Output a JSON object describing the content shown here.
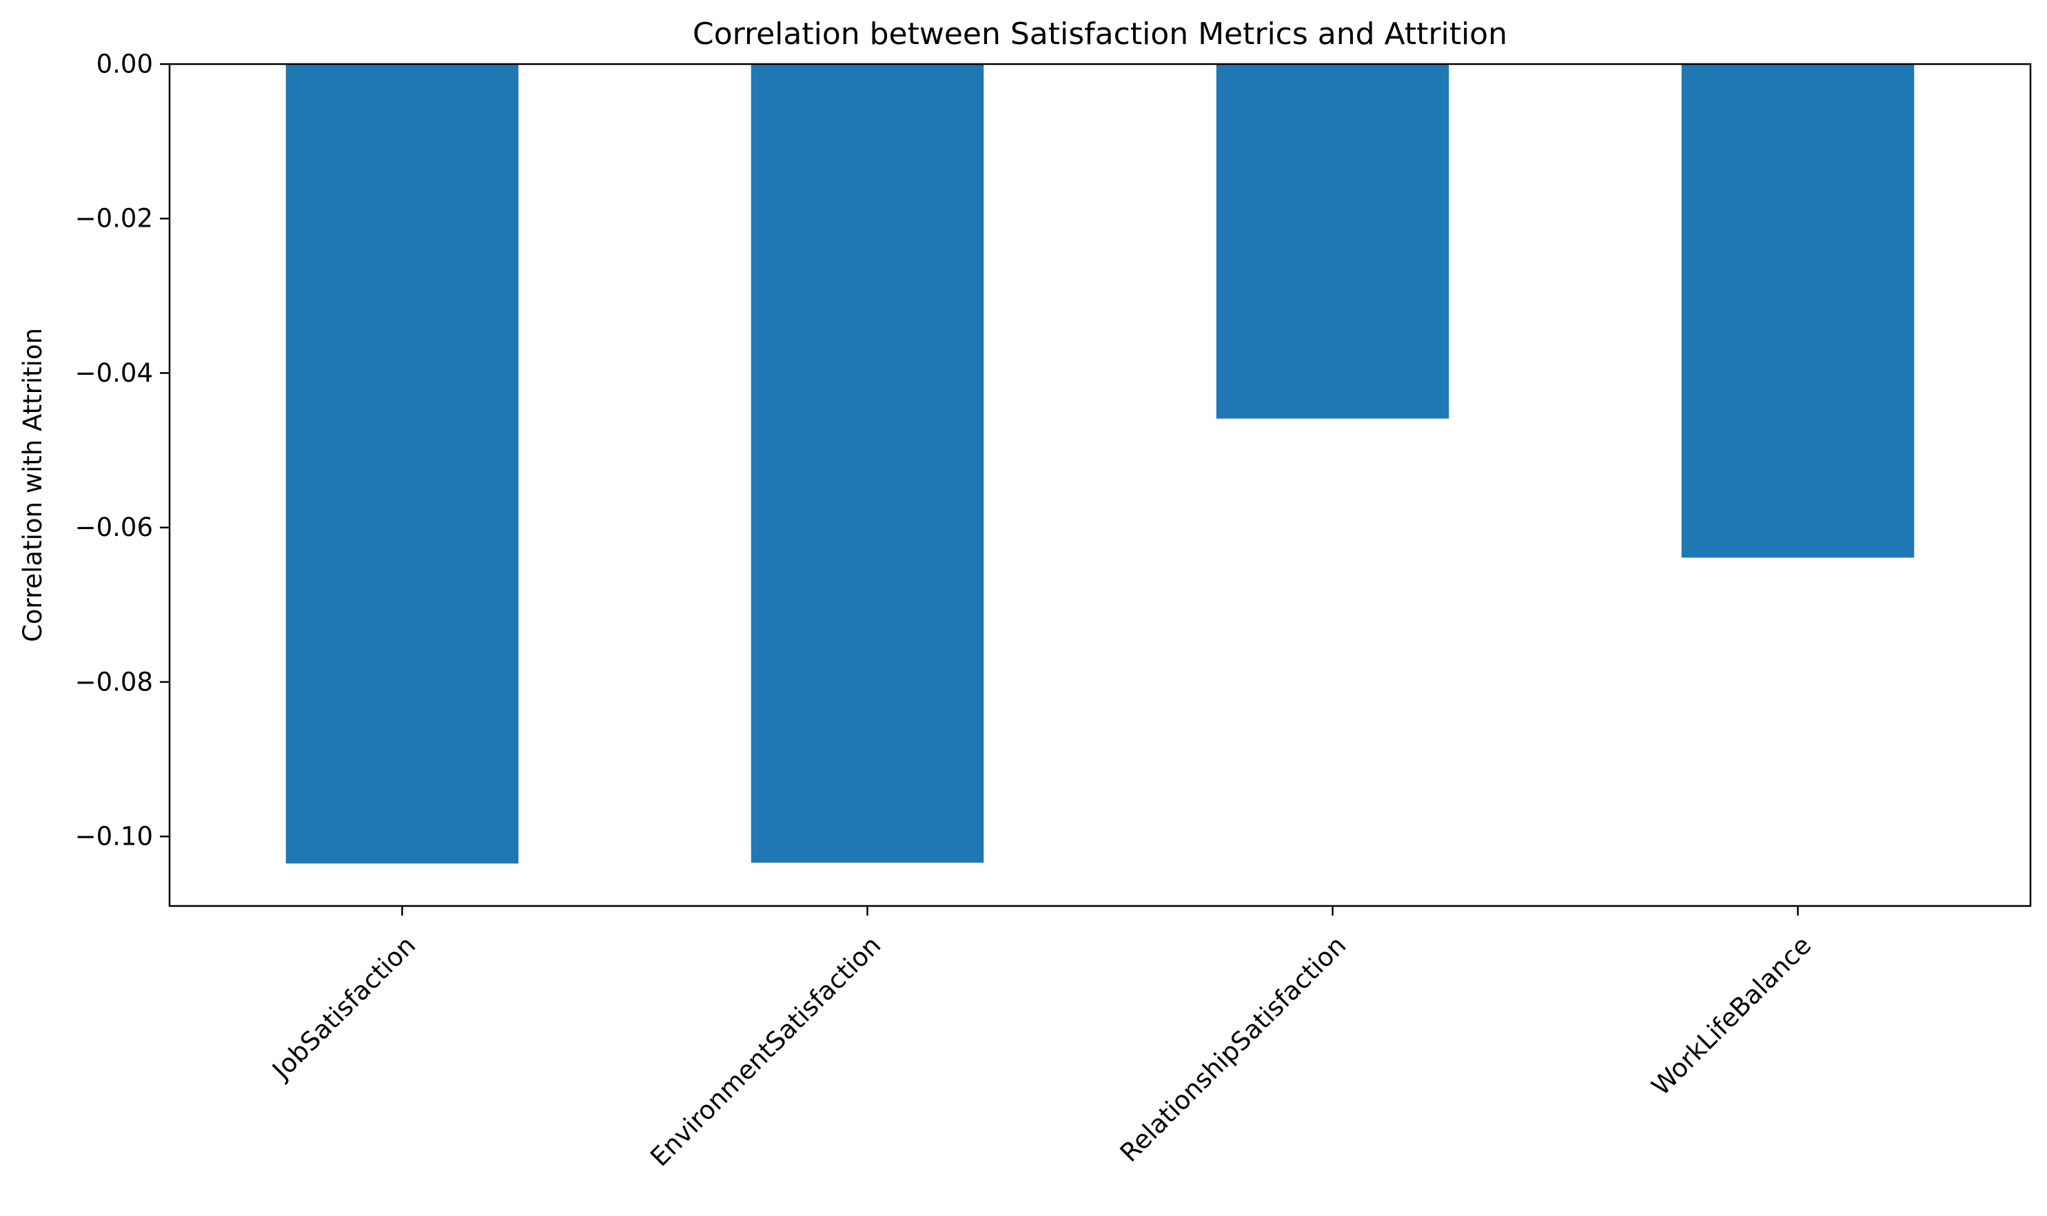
{
  "chart_data": {
    "type": "bar",
    "title": "Correlation between Satisfaction Metrics and Attrition",
    "xlabel": "",
    "ylabel": "Correlation with Attrition",
    "categories": [
      "JobSatisfaction",
      "EnvironmentSatisfaction",
      "RelationshipSatisfaction",
      "WorkLifeBalance"
    ],
    "values": [
      -0.1035,
      -0.1034,
      -0.0459,
      -0.0639
    ],
    "ylim": [
      -0.109,
      0.0
    ],
    "yticks": [
      0.0,
      -0.02,
      -0.04,
      -0.06,
      -0.08,
      -0.1
    ],
    "ytick_labels": [
      "0.00",
      "−0.02",
      "−0.04",
      "−0.06",
      "−0.08",
      "−0.10"
    ],
    "grid": false,
    "legend": "none",
    "bar_color": "#1f77b4"
  }
}
